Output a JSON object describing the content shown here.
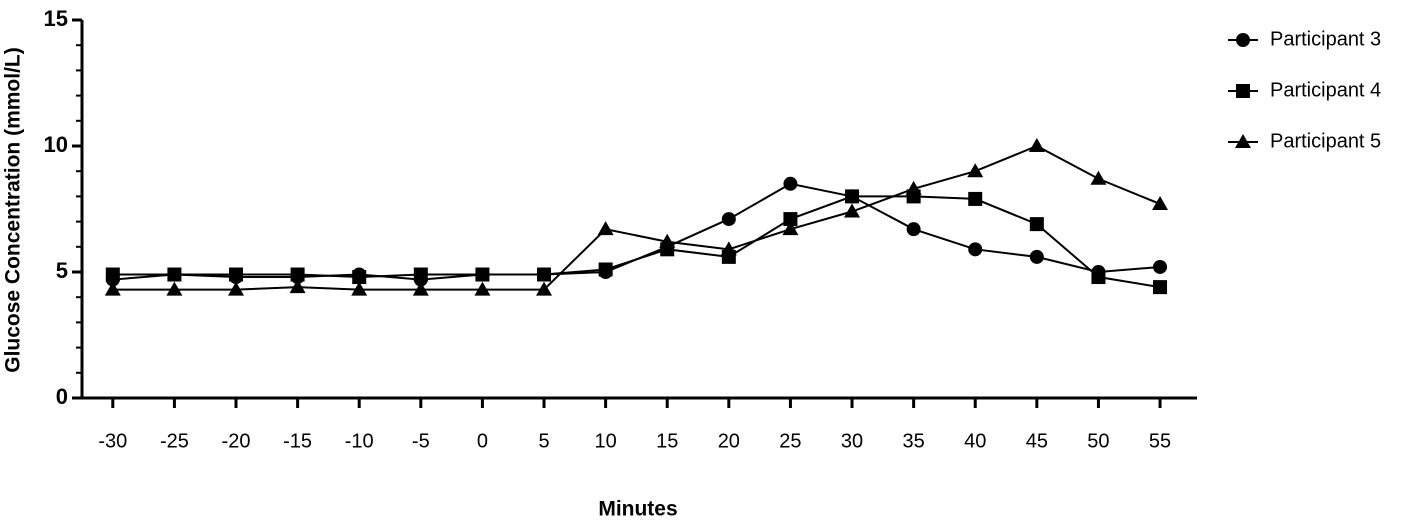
{
  "chart_data": {
    "type": "line",
    "x_label": "Minutes",
    "y_label": "Glucose Concentration (mmol/L)",
    "x": [
      -30,
      -25,
      -20,
      -15,
      -10,
      -5,
      0,
      5,
      10,
      15,
      20,
      25,
      30,
      35,
      40,
      45,
      50,
      55
    ],
    "series": [
      {
        "name": "Participant 3",
        "color": "#000000",
        "marker": "circle",
        "values": [
          4.7,
          4.9,
          4.8,
          4.8,
          4.9,
          4.7,
          4.9,
          4.9,
          5.0,
          6.0,
          7.1,
          8.5,
          8.0,
          6.7,
          5.9,
          5.6,
          5.0,
          5.2
        ]
      },
      {
        "name": "Participant 4",
        "color": "#000000",
        "marker": "square",
        "values": [
          4.9,
          4.9,
          4.9,
          4.9,
          4.8,
          4.9,
          4.9,
          4.9,
          5.1,
          5.9,
          5.6,
          7.1,
          8.0,
          8.0,
          7.9,
          6.9,
          4.8,
          4.4
        ]
      },
      {
        "name": "Participant 5",
        "color": "#000000",
        "marker": "triangle",
        "values": [
          4.3,
          4.3,
          4.3,
          4.4,
          4.3,
          4.3,
          4.3,
          4.3,
          6.7,
          6.2,
          5.9,
          6.7,
          7.4,
          8.3,
          9.0,
          10.0,
          8.7,
          7.7
        ]
      }
    ],
    "xlim": [
      -32.5,
      58
    ],
    "xticks": [
      -30,
      -25,
      -20,
      -15,
      -10,
      -5,
      0,
      5,
      10,
      15,
      20,
      25,
      30,
      35,
      40,
      45,
      50,
      55
    ],
    "ylim": [
      0,
      15
    ],
    "yticks": [
      0,
      5,
      10,
      15
    ],
    "y_minor_ticks": [
      1,
      2,
      3,
      4,
      6,
      7,
      8,
      9,
      11,
      12,
      13,
      14
    ],
    "grid": false,
    "legend": "right"
  }
}
